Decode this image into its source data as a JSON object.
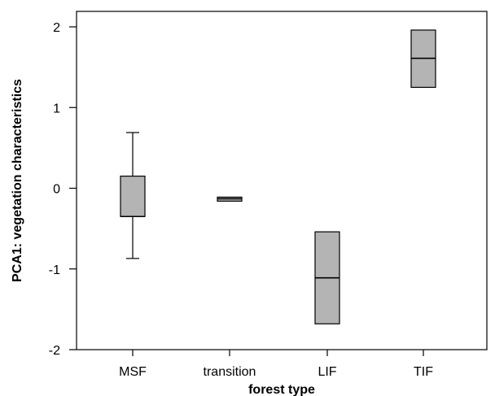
{
  "chart_data": {
    "type": "box",
    "title": "",
    "xlabel": "forest type",
    "ylabel": "PCA1: vegetation characteristics",
    "ylim": [
      -2,
      2.25
    ],
    "yticks": [
      2,
      1,
      0,
      -1,
      -2
    ],
    "ytick_labels": [
      "2",
      "1",
      "0",
      "-1",
      "-2"
    ],
    "grid": false,
    "legend": "none",
    "box_color": "#b4b4b4",
    "categories": [
      "MSF",
      "transition",
      "LIF",
      "TIF"
    ],
    "boxes": [
      {
        "category": "MSF",
        "whisker_low": -0.87,
        "q1": -0.35,
        "median": -0.35,
        "q3": 0.15,
        "whisker_high": 0.69
      },
      {
        "category": "transition",
        "whisker_low": -0.16,
        "q1": -0.16,
        "median": -0.13,
        "q3": -0.11,
        "whisker_high": -0.11
      },
      {
        "category": "LIF",
        "whisker_low": -1.68,
        "q1": -1.68,
        "median": -1.11,
        "q3": -0.54,
        "whisker_high": -0.54
      },
      {
        "category": "TIF",
        "whisker_low": 1.25,
        "q1": 1.25,
        "median": 1.61,
        "q3": 1.96,
        "whisker_high": 1.96
      }
    ]
  }
}
